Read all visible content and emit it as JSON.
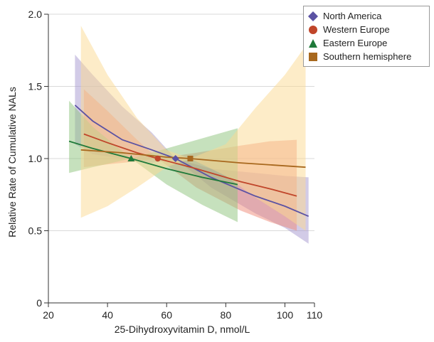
{
  "chart_data": {
    "type": "line",
    "xlabel": "25-Dihydroxyvitamin D, nmol/L",
    "ylabel": "Relative Rate of Cumulative NALs",
    "xlim": [
      20,
      110
    ],
    "ylim": [
      0,
      2.0
    ],
    "xticks": [
      20,
      40,
      60,
      80,
      100,
      110
    ],
    "yticks": [
      0,
      0.5,
      1.0,
      1.5,
      2.0
    ],
    "xtick_labels": [
      "20",
      "40",
      "60",
      "80",
      "100",
      "110"
    ],
    "ytick_labels": [
      "0",
      "0.5",
      "1.0",
      "1.5",
      "2.0"
    ],
    "grid": "horizontal",
    "legend_position": "top-right",
    "series": [
      {
        "name": "North America",
        "color": "#5b52a3",
        "band_color": "#a597cf",
        "marker": "diamond",
        "reference_point": [
          63,
          1.0
        ],
        "line": [
          [
            29,
            1.37
          ],
          [
            35,
            1.26
          ],
          [
            45,
            1.13
          ],
          [
            55,
            1.06
          ],
          [
            63,
            1.0
          ],
          [
            75,
            0.87
          ],
          [
            90,
            0.74
          ],
          [
            100,
            0.67
          ],
          [
            108,
            0.6
          ]
        ],
        "band_upper": [
          [
            29,
            1.72
          ],
          [
            35,
            1.58
          ],
          [
            45,
            1.36
          ],
          [
            55,
            1.18
          ],
          [
            63,
            1.0
          ],
          [
            75,
            0.93
          ],
          [
            90,
            0.9
          ],
          [
            100,
            0.88
          ],
          [
            108,
            0.87
          ]
        ],
        "band_lower": [
          [
            29,
            1.1
          ],
          [
            35,
            1.03
          ],
          [
            45,
            1.0
          ],
          [
            55,
            0.97
          ],
          [
            63,
            1.0
          ],
          [
            75,
            0.8
          ],
          [
            90,
            0.62
          ],
          [
            100,
            0.52
          ],
          [
            108,
            0.41
          ]
        ]
      },
      {
        "name": "Western Europe",
        "color": "#c0452a",
        "band_color": "#f08a77",
        "marker": "circle",
        "reference_point": [
          57,
          1.0
        ],
        "line": [
          [
            32,
            1.17
          ],
          [
            40,
            1.11
          ],
          [
            50,
            1.04
          ],
          [
            57,
            1.0
          ],
          [
            70,
            0.93
          ],
          [
            85,
            0.84
          ],
          [
            95,
            0.79
          ],
          [
            104,
            0.74
          ]
        ],
        "band_upper": [
          [
            32,
            1.48
          ],
          [
            40,
            1.33
          ],
          [
            50,
            1.13
          ],
          [
            57,
            1.0
          ],
          [
            70,
            1.04
          ],
          [
            85,
            1.09
          ],
          [
            95,
            1.12
          ],
          [
            104,
            1.13
          ]
        ],
        "band_lower": [
          [
            32,
            0.94
          ],
          [
            40,
            0.96
          ],
          [
            50,
            0.98
          ],
          [
            57,
            1.0
          ],
          [
            70,
            0.8
          ],
          [
            85,
            0.64
          ],
          [
            95,
            0.56
          ],
          [
            104,
            0.5
          ]
        ]
      },
      {
        "name": "Eastern Europe",
        "color": "#1f7a3a",
        "band_color": "#8ec47c",
        "marker": "triangle",
        "reference_point": [
          48,
          1.0
        ],
        "line": [
          [
            27,
            1.12
          ],
          [
            35,
            1.07
          ],
          [
            48,
            1.0
          ],
          [
            60,
            0.93
          ],
          [
            72,
            0.87
          ],
          [
            84,
            0.82
          ]
        ],
        "band_upper": [
          [
            27,
            1.4
          ],
          [
            35,
            1.22
          ],
          [
            48,
            1.0
          ],
          [
            60,
            1.07
          ],
          [
            72,
            1.14
          ],
          [
            84,
            1.21
          ]
        ],
        "band_lower": [
          [
            27,
            0.9
          ],
          [
            35,
            0.94
          ],
          [
            48,
            1.0
          ],
          [
            60,
            0.82
          ],
          [
            72,
            0.68
          ],
          [
            84,
            0.56
          ]
        ]
      },
      {
        "name": "Southern hemisphere",
        "color": "#a8681e",
        "band_color": "#fbd991",
        "marker": "square",
        "reference_point": [
          68,
          1.0
        ],
        "line": [
          [
            31,
            1.06
          ],
          [
            45,
            1.04
          ],
          [
            60,
            1.01
          ],
          [
            68,
            1.0
          ],
          [
            85,
            0.97
          ],
          [
            107,
            0.94
          ]
        ],
        "band_upper": [
          [
            31,
            1.92
          ],
          [
            40,
            1.58
          ],
          [
            50,
            1.28
          ],
          [
            60,
            1.06
          ],
          [
            68,
            1.0
          ],
          [
            80,
            1.1
          ],
          [
            90,
            1.35
          ],
          [
            100,
            1.58
          ],
          [
            107,
            1.78
          ]
        ],
        "band_lower": [
          [
            31,
            0.59
          ],
          [
            40,
            0.67
          ],
          [
            50,
            0.8
          ],
          [
            60,
            0.94
          ],
          [
            68,
            1.0
          ],
          [
            80,
            0.88
          ],
          [
            90,
            0.73
          ],
          [
            100,
            0.6
          ],
          [
            107,
            0.5
          ]
        ]
      }
    ]
  }
}
